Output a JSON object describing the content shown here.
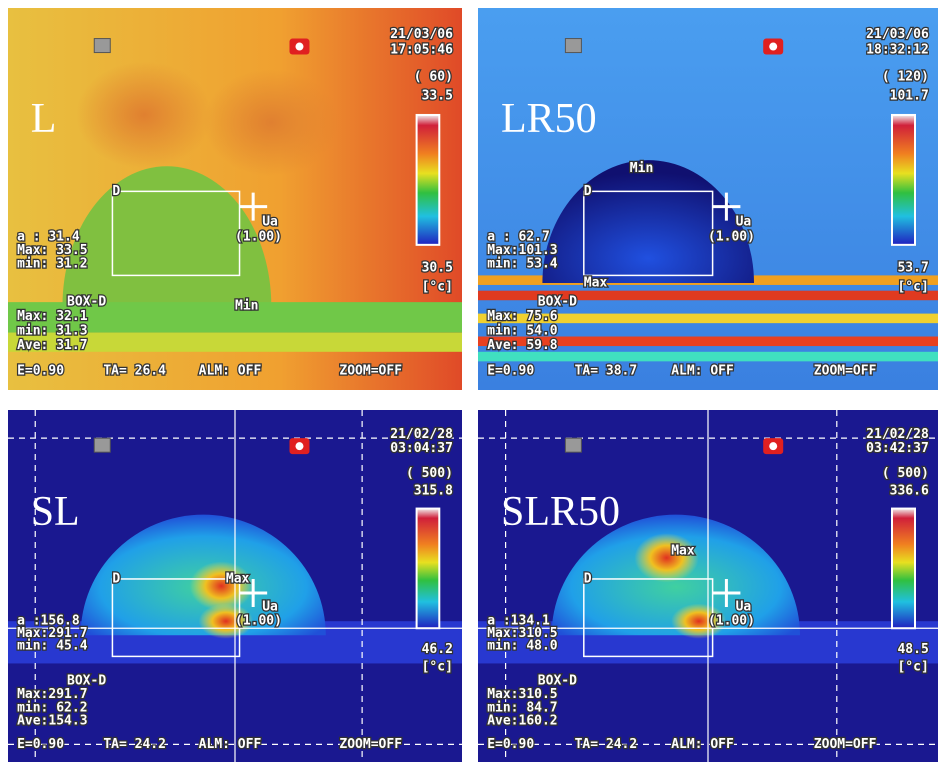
{
  "panels": [
    {
      "label": "L",
      "date": "21/03/06",
      "time": "17:05:46",
      "range": "( 60)",
      "scale_max": "33.5",
      "scale_min": "30.5",
      "unit": "[°c]",
      "readings": [
        "a  : 31.4",
        "Max: 33.5",
        "min: 31.2"
      ],
      "box": [
        "BOX-D",
        "Max: 32.1",
        "min: 31.3",
        "Ave: 31.7"
      ],
      "footer": [
        "E=0.90",
        "TA= 26.4",
        "ALM: OFF",
        "ZOOM=OFF"
      ],
      "markers": [
        "D",
        "Ua",
        "(1.00)",
        "Min"
      ]
    },
    {
      "label": "LR50",
      "date": "21/03/06",
      "time": "18:32:12",
      "range": "( 120)",
      "scale_max": "101.7",
      "scale_min": "53.7",
      "unit": "[°c]",
      "readings": [
        "a  : 62.7",
        "Max:101.3",
        "min: 53.4"
      ],
      "box": [
        "BOX-D",
        "Max: 75.6",
        "min: 54.0",
        "Ave: 59.8"
      ],
      "footer": [
        "E=0.90",
        "TA= 38.7",
        "ALM: OFF",
        "ZOOM=OFF"
      ],
      "markers": [
        "D",
        "Ua",
        "(1.00)",
        "Min",
        "Max"
      ]
    },
    {
      "label": "SL",
      "date": "21/02/28",
      "time": "03:04:37",
      "range": "( 500)",
      "scale_max": "315.8",
      "scale_min": "46.2",
      "unit": "[°c]",
      "readings": [
        "a  :156.8",
        "Max:291.7",
        "min: 45.4"
      ],
      "box": [
        "BOX-D",
        "Max:291.7",
        "min: 62.2",
        "Ave:154.3"
      ],
      "footer": [
        "E=0.90",
        "TA= 24.2",
        "ALM: OFF",
        "ZOOM=OFF"
      ],
      "markers": [
        "D",
        "Ua",
        "(1.00)",
        "Max"
      ]
    },
    {
      "label": "SLR50",
      "date": "21/02/28",
      "time": "03:42:37",
      "range": "( 500)",
      "scale_max": "336.6",
      "scale_min": "48.5",
      "unit": "[°c]",
      "readings": [
        "a  :134.1",
        "Max:310.5",
        "min: 48.0"
      ],
      "box": [
        "BOX-D",
        "Max:310.5",
        "min: 84.7",
        "Ave:160.2"
      ],
      "footer": [
        "E=0.90",
        "TA= 24.2",
        "ALM: OFF",
        "ZOOM=OFF"
      ],
      "markers": [
        "D",
        "Ua",
        "(1.00)",
        "Max"
      ]
    }
  ]
}
